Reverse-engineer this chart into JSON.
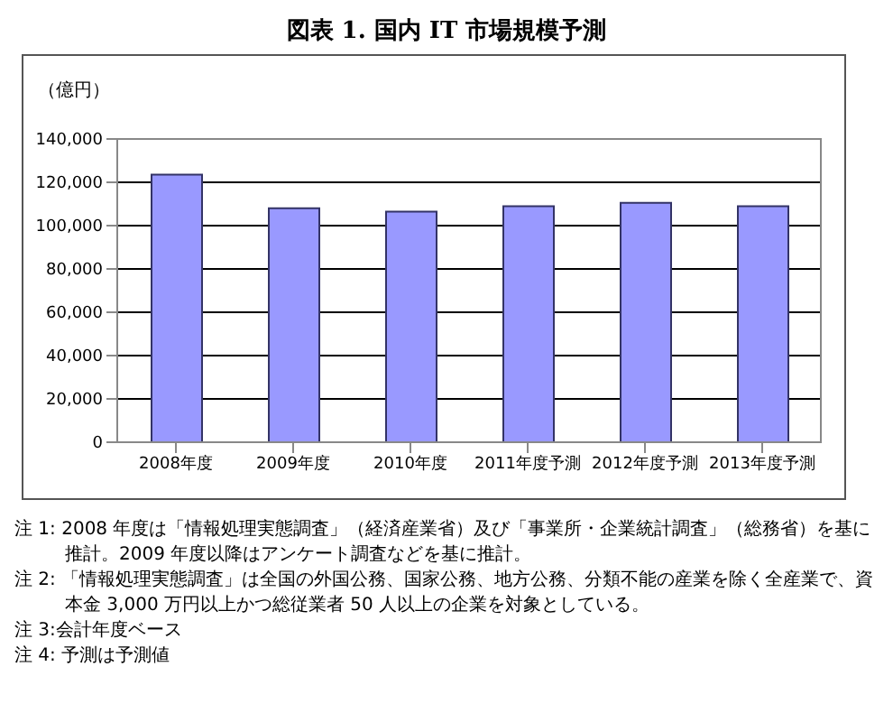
{
  "chart_data": {
    "type": "bar",
    "title": "図表 1. 国内 IT 市場規模予測",
    "ylabel": "（億円）",
    "categories": [
      "2008年度",
      "2009年度",
      "2010年度",
      "2011年度予測",
      "2012年度予測",
      "2013年度予測"
    ],
    "values": [
      123500,
      108000,
      106500,
      109000,
      110500,
      109000
    ],
    "color": "#9999ff",
    "ylim": [
      0,
      140000
    ],
    "yticks": [
      {
        "value": 0,
        "label": "0"
      },
      {
        "value": 20000,
        "label": "20,000"
      },
      {
        "value": 40000,
        "label": "40,000"
      },
      {
        "value": 60000,
        "label": "60,000"
      },
      {
        "value": 80000,
        "label": "80,000"
      },
      {
        "value": 100000,
        "label": "100,000"
      },
      {
        "value": 120000,
        "label": "120,000"
      },
      {
        "value": 140000,
        "label": "140,000"
      }
    ],
    "grid": "y",
    "legend": false,
    "annotations": [
      "注 1: 2008 年度は「情報処理実態調査」（経済産業省）及び「事業所・企業統計調査」（総務省）を基に推計。2009 年度以降はアンケート調査などを基に推計。",
      "注 2: 「情報処理実態調査」は全国の外国公務、国家公務、地方公務、分類不能の産業を除く全産業で、資本金 3,000 万円以上かつ総従業者 50 人以上の企業を対象としている。",
      "注 3:会計年度ベース",
      "注 4: 予測は予測値"
    ]
  }
}
